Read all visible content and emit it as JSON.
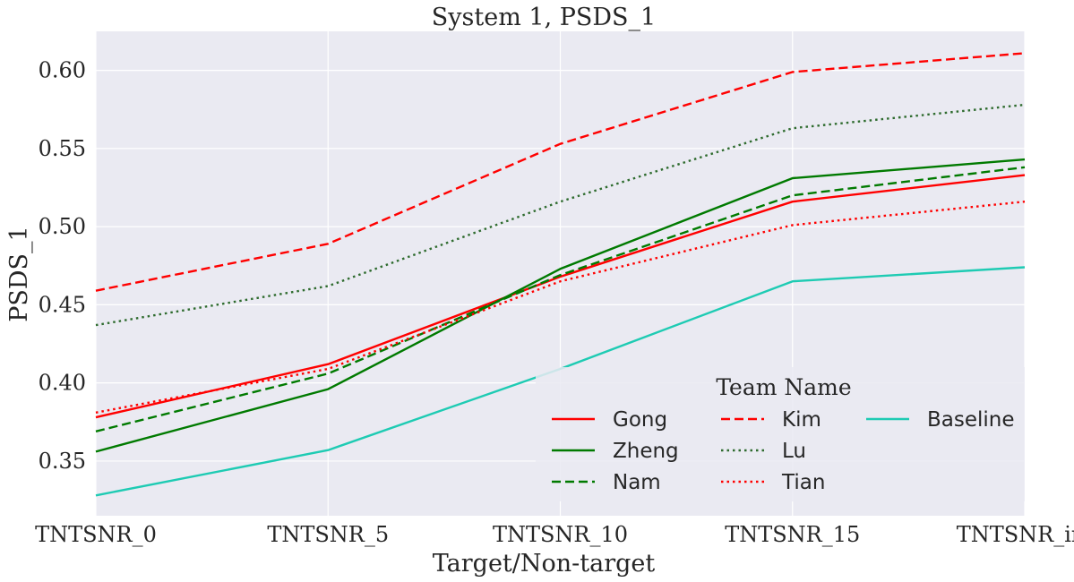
{
  "chart_data": {
    "type": "line",
    "title": "System 1, PSDS_1",
    "xlabel": "Target/Non-target",
    "ylabel": "PSDS_1",
    "categories": [
      "TNTSNR_0",
      "TNTSNR_5",
      "TNTSNR_10",
      "TNTSNR_15",
      "TNTSNR_inf"
    ],
    "ylim": [
      0.315,
      0.625
    ],
    "yticks": [
      0.35,
      0.4,
      0.45,
      0.5,
      0.55,
      0.6
    ],
    "ytick_labels": [
      "0.35",
      "0.40",
      "0.45",
      "0.50",
      "0.55",
      "0.60"
    ],
    "grid": true,
    "background": "#eaeaf2",
    "legend": {
      "title": "Team Name",
      "placement": "lower-right",
      "columns": 3
    },
    "series": [
      {
        "name": "Gong",
        "color": "#ff0000",
        "dash": "solid",
        "values": [
          0.378,
          0.412,
          0.468,
          0.516,
          0.533
        ]
      },
      {
        "name": "Zheng",
        "color": "#007a00",
        "dash": "solid",
        "values": [
          0.356,
          0.396,
          0.473,
          0.531,
          0.543
        ]
      },
      {
        "name": "Nam",
        "color": "#007a00",
        "dash": "dashed",
        "values": [
          0.369,
          0.406,
          0.469,
          0.52,
          0.538
        ]
      },
      {
        "name": "Kim",
        "color": "#ff0000",
        "dash": "dashed",
        "values": [
          0.459,
          0.489,
          0.553,
          0.599,
          0.611
        ]
      },
      {
        "name": "Lu",
        "color": "#2e6b2e",
        "dash": "dotted",
        "values": [
          0.437,
          0.462,
          0.516,
          0.563,
          0.578
        ]
      },
      {
        "name": "Tian",
        "color": "#ff0000",
        "dash": "dotted",
        "values": [
          0.381,
          0.409,
          0.465,
          0.501,
          0.516
        ]
      },
      {
        "name": "Baseline",
        "color": "#1ecbb3",
        "dash": "solid",
        "values": [
          0.328,
          0.357,
          0.409,
          0.465,
          0.474
        ]
      }
    ]
  }
}
